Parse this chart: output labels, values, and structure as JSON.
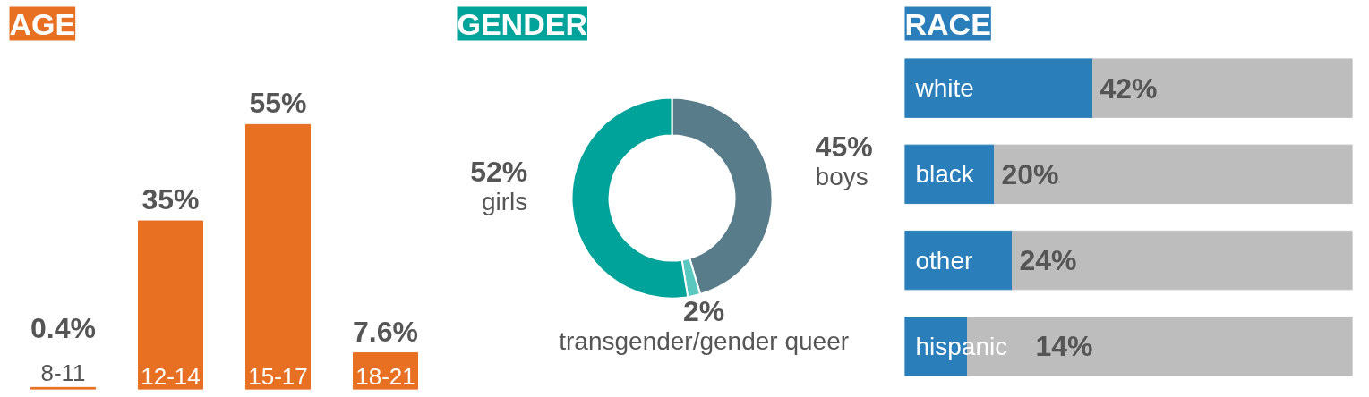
{
  "chart_data": [
    {
      "type": "bar",
      "title": "AGE",
      "categories": [
        "8-11",
        "12-14",
        "15-17",
        "18-21"
      ],
      "values": [
        0.4,
        35,
        55,
        7.6
      ],
      "value_labels": [
        "0.4%",
        "35%",
        "55%",
        "7.6%"
      ],
      "color": "#e87022",
      "tick_labels": false
    },
    {
      "type": "donut",
      "title": "GENDER",
      "categories": [
        "boys",
        "transgender/gender queer",
        "girls"
      ],
      "values": [
        45,
        2,
        52
      ],
      "colors": [
        "#587c8a",
        "#5bc8c0",
        "#00a39a"
      ],
      "value_labels": [
        "45%",
        "2%",
        "52%"
      ]
    },
    {
      "type": "bar",
      "orientation": "horizontal",
      "stacked": true,
      "title": "RACE",
      "categories": [
        "white",
        "black",
        "other",
        "hispanic"
      ],
      "series": [
        {
          "color": "#2a7fba",
          "values": [
            42,
            20,
            24,
            14
          ],
          "value_labels": [
            "42%",
            "20%",
            "24%",
            "14%"
          ]
        },
        {
          "color": "#bdbdbd",
          "values": [
            58,
            80,
            76,
            86
          ]
        }
      ],
      "tick_labels": false
    }
  ]
}
